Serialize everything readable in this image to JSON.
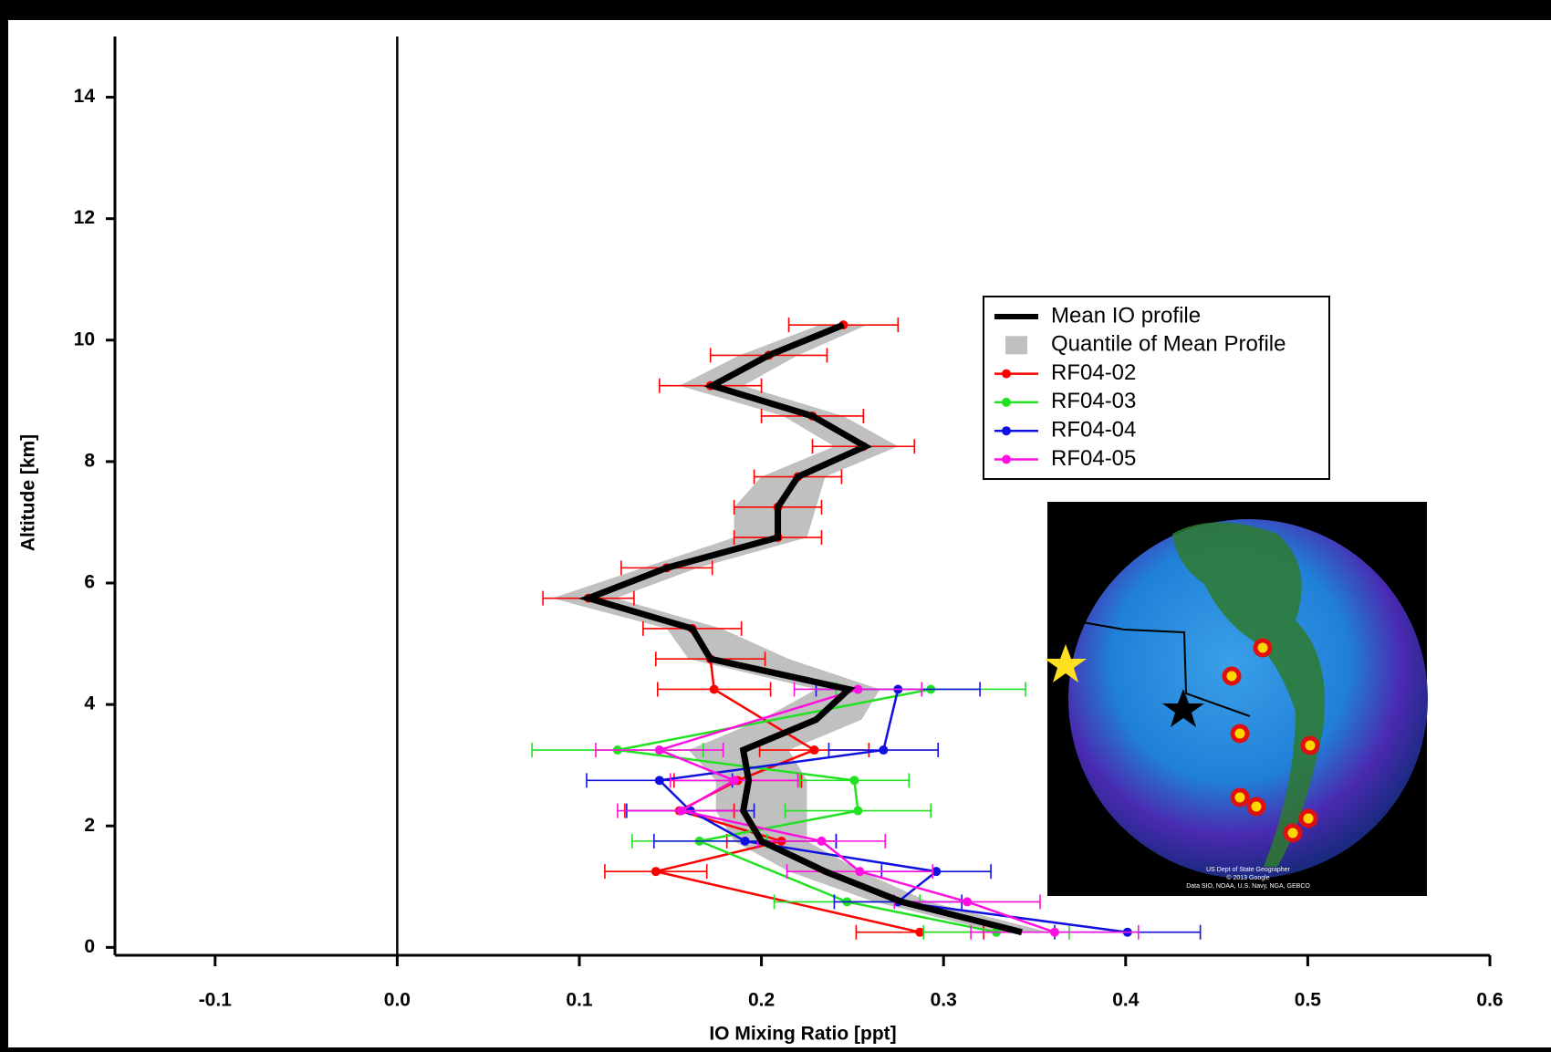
{
  "chart_data": {
    "type": "profile",
    "xlabel": "IO Mixing Ratio [ppt]",
    "ylabel": "Altitude [km]",
    "xlim": [
      -0.155,
      0.6
    ],
    "ylim": [
      -0.13,
      15
    ],
    "xticks": [
      -0.1,
      {
        "value": 0,
        "label": "0.0"
      },
      0.1,
      0.2,
      0.3,
      0.4,
      0.5,
      0.6
    ],
    "yticks": [
      0,
      2,
      4,
      6,
      8,
      10,
      12,
      14
    ],
    "legend": "upper-right",
    "mean": {
      "name": "Mean IO profile",
      "color": "#000000",
      "altitude": [
        0.25,
        0.75,
        1.25,
        1.75,
        2.25,
        2.75,
        3.25,
        3.75,
        4.25,
        4.75,
        5.25,
        5.75,
        6.25,
        6.75,
        7.25,
        7.75,
        8.25,
        8.75,
        9.25,
        9.75,
        10.25
      ],
      "values": [
        0.343,
        0.277,
        0.235,
        0.2,
        0.19,
        0.193,
        0.19,
        0.23,
        0.248,
        0.172,
        0.162,
        0.105,
        0.148,
        0.209,
        0.209,
        0.22,
        0.257,
        0.228,
        0.173,
        0.204,
        0.245
      ]
    },
    "band": {
      "name": "Quantile of Mean Profile",
      "color": "#c0c0c0",
      "low": [
        0.33,
        0.262,
        0.215,
        0.185,
        0.175,
        0.175,
        0.16,
        0.2,
        0.23,
        0.16,
        0.148,
        0.085,
        0.135,
        0.185,
        0.185,
        0.2,
        0.24,
        0.212,
        0.155,
        0.188,
        0.232
      ],
      "high": [
        0.358,
        0.292,
        0.255,
        0.225,
        0.225,
        0.225,
        0.215,
        0.255,
        0.265,
        0.215,
        0.178,
        0.12,
        0.165,
        0.225,
        0.23,
        0.235,
        0.275,
        0.245,
        0.19,
        0.22,
        0.258
      ]
    },
    "series": [
      {
        "name": "RF04-02",
        "color": "#ff0000",
        "altitude": [
          0.25,
          1.25,
          1.75,
          2.25,
          2.75,
          3.25,
          4.25,
          4.75,
          5.25,
          5.75,
          6.25,
          6.75,
          7.25,
          7.75,
          8.25,
          8.75,
          9.25,
          9.75,
          10.25
        ],
        "values": [
          0.287,
          0.142,
          0.211,
          0.155,
          0.187,
          0.229,
          0.174,
          0.172,
          0.162,
          0.105,
          0.148,
          0.209,
          0.209,
          0.22,
          0.256,
          0.228,
          0.172,
          0.204,
          0.245
        ],
        "errors": [
          0.035,
          0.028,
          0.03,
          0.03,
          0.035,
          0.03,
          0.031,
          0.03,
          0.027,
          0.025,
          0.025,
          0.024,
          0.024,
          0.024,
          0.028,
          0.028,
          0.028,
          0.032,
          0.03
        ]
      },
      {
        "name": "RF04-03",
        "color": "#22e022",
        "altitude": [
          0.25,
          0.75,
          1.75,
          2.25,
          2.75,
          3.25,
          4.25
        ],
        "values": [
          0.329,
          0.247,
          0.166,
          0.253,
          0.251,
          0.121,
          0.293
        ],
        "errors": [
          0.04,
          0.04,
          0.037,
          0.04,
          0.03,
          0.047,
          0.052
        ]
      },
      {
        "name": "RF04-04",
        "color": "#1010e0",
        "altitude": [
          0.25,
          0.75,
          1.25,
          1.75,
          2.25,
          2.75,
          3.25,
          4.25
        ],
        "values": [
          0.401,
          0.275,
          0.296,
          0.191,
          0.161,
          0.144,
          0.267,
          0.275
        ],
        "errors": [
          0.04,
          0.035,
          0.03,
          0.05,
          0.035,
          0.04,
          0.03,
          0.045
        ]
      },
      {
        "name": "RF04-05",
        "color": "#ff10e0",
        "altitude": [
          0.25,
          0.75,
          1.25,
          1.75,
          2.25,
          2.75,
          3.25,
          4.25
        ],
        "values": [
          0.361,
          0.313,
          0.254,
          0.233,
          0.156,
          0.185,
          0.144,
          0.253
        ],
        "errors": [
          0.046,
          0.04,
          0.04,
          0.035,
          0.035,
          0.035,
          0.035,
          0.035
        ]
      }
    ],
    "inset": {
      "credits": [
        "US Dept of State Geographer",
        "© 2013 Google",
        "Data SIO, NOAA, U.S. Navy, NGA, GEBCO"
      ]
    }
  }
}
